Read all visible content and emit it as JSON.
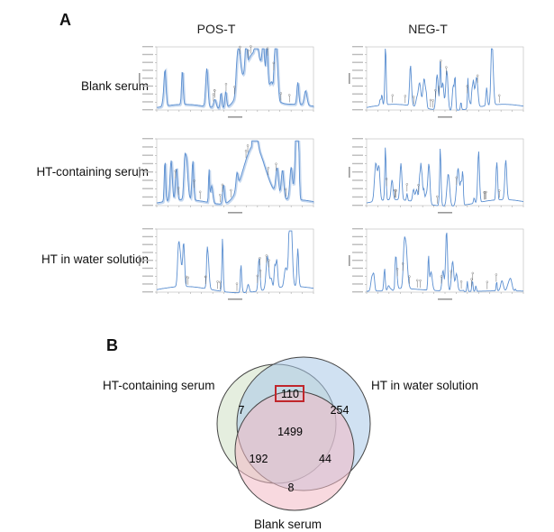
{
  "panel_a": {
    "letter": "A",
    "columns": [
      "POS-T",
      "NEG-T"
    ],
    "rows": [
      "Blank serum",
      "HT-containing serum",
      "HT in water solution"
    ],
    "axis_x_label": "Time (min)",
    "axis_y_label": "Intensity",
    "line_color": "#5b8fd1"
  },
  "panel_b": {
    "letter": "B",
    "sets": [
      {
        "name": "HT-containing serum",
        "color": "#cfe0c4"
      },
      {
        "name": "HT in water solution",
        "color": "#a9c8e8"
      },
      {
        "name": "Blank serum",
        "color": "#f3b9c4"
      }
    ],
    "regions": {
      "ht_serum_only": "7",
      "ht_serum_and_water": "110",
      "water_only": "254",
      "all_three": "1499",
      "ht_serum_and_blank": "192",
      "water_and_blank": "44",
      "blank_only": "8"
    },
    "highlight_color": "#c0262b"
  }
}
